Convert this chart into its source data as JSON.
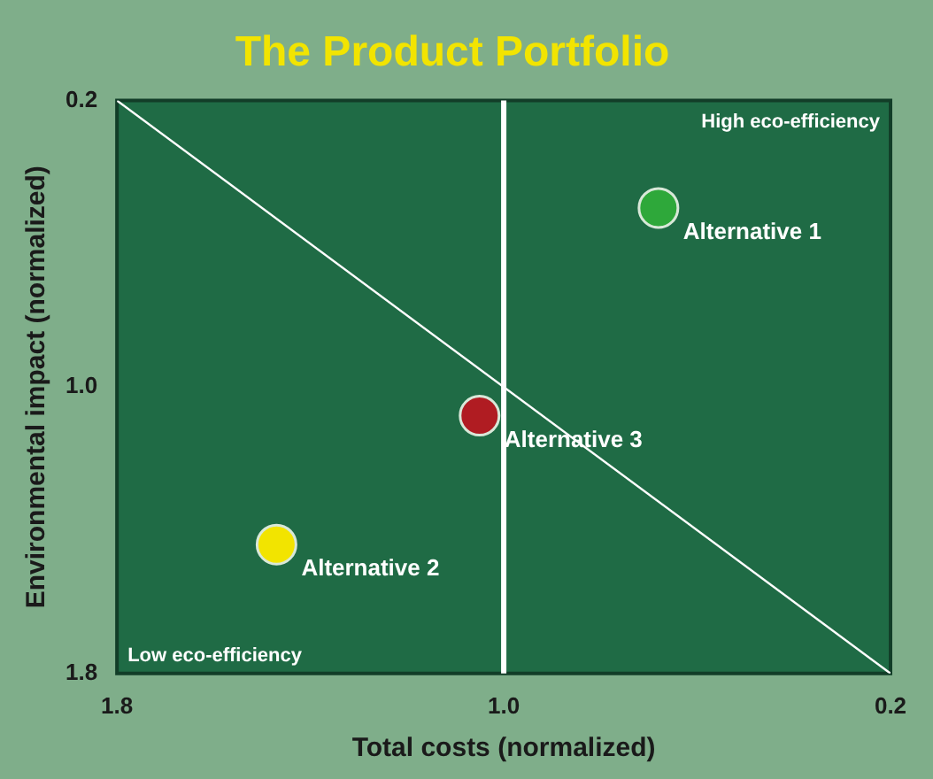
{
  "chart_data": {
    "type": "scatter",
    "title": "The Product Portfolio",
    "xlabel": "Total costs (normalized)",
    "ylabel": "Environmental impact (normalized)",
    "xlim": [
      1.8,
      0.2
    ],
    "xticks": [
      1.8,
      {
        "value": 1,
        "label": "1.0"
      },
      0.2
    ],
    "ylim": [
      1.8,
      0.2
    ],
    "yticks": [
      0.2,
      {
        "value": 1,
        "label": "1.0"
      },
      1.8
    ],
    "grid": false,
    "legend": false,
    "marker": "circle",
    "series": [
      {
        "name": "Alternative 1",
        "color": "#2ea83a",
        "x": [
          0.68
        ],
        "values": [
          0.5
        ]
      },
      {
        "name": "Alternative 2",
        "color": "#f2e400",
        "x": [
          1.47
        ],
        "values": [
          1.44
        ]
      },
      {
        "name": "Alternative 3",
        "color": "#b01c22",
        "x": [
          1.05
        ],
        "values": [
          1.08
        ]
      },
      {
        "type": "line",
        "marker": "none",
        "color": "#ffffff",
        "x": [
          1.8,
          0.2
        ],
        "values": [
          0.2,
          1.8
        ]
      }
    ],
    "ref_lines": [
      {
        "axis": "x",
        "value": 1.0,
        "color": "#ffffff"
      }
    ],
    "annotations": [
      "High eco-efficiency",
      "Low eco-efficiency"
    ]
  }
}
